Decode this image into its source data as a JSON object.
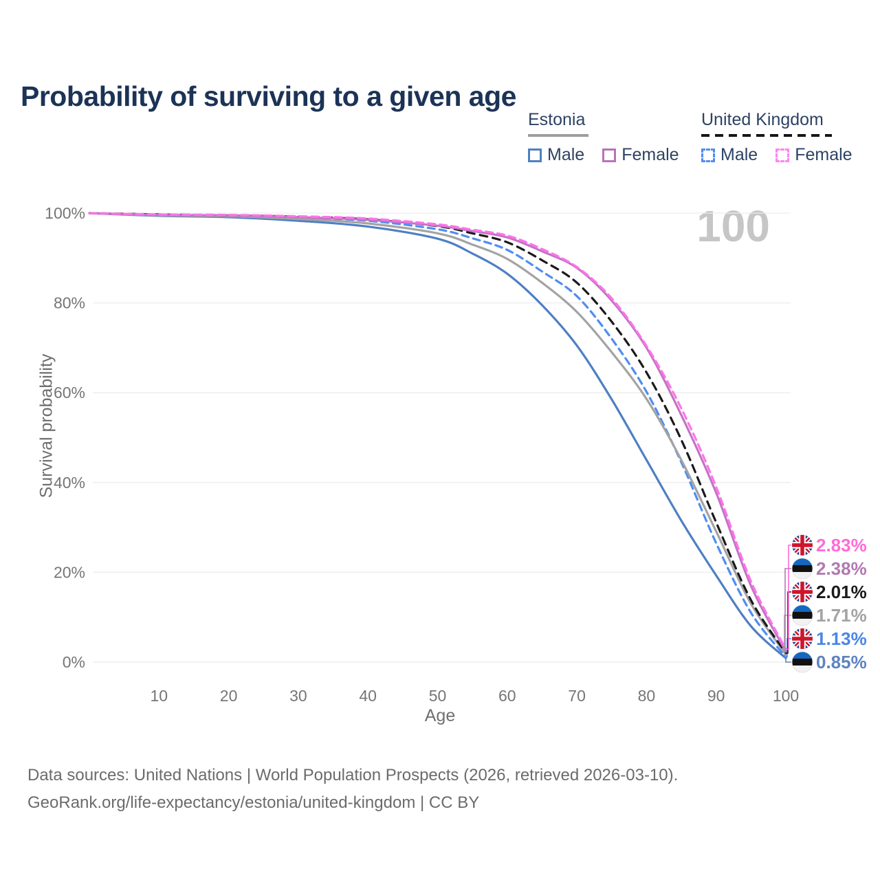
{
  "title": "Probability of surviving to a given age",
  "watermark": "100",
  "legend": {
    "groups": [
      {
        "label": "Estonia",
        "line_style": "solid",
        "underline_color": "#9e9e9e",
        "items": [
          {
            "label": "Male",
            "color": "#4e7fc3",
            "dashed": false
          },
          {
            "label": "Female",
            "color": "#b873b8",
            "dashed": false
          }
        ]
      },
      {
        "label": "United Kingdom",
        "line_style": "dashed",
        "underline_color": "#161616",
        "items": [
          {
            "label": "Male",
            "color": "#4f8df2",
            "dashed": true
          },
          {
            "label": "Female",
            "color": "#ff85ec",
            "dashed": true
          }
        ]
      }
    ]
  },
  "chart_data": {
    "type": "line",
    "title": "Probability of surviving to a given age",
    "xlabel": "Age",
    "ylabel": "Survival probability",
    "xlim": [
      0,
      100
    ],
    "ylim": [
      0,
      100
    ],
    "grid": "horizontal",
    "x_ticks": [
      10,
      20,
      30,
      40,
      50,
      60,
      70,
      80,
      90,
      100
    ],
    "y_ticks": [
      {
        "value": 0,
        "label": "0%"
      },
      {
        "value": 20,
        "label": "20%"
      },
      {
        "value": 40,
        "label": "40%"
      },
      {
        "value": 60,
        "label": "60%"
      },
      {
        "value": 80,
        "label": "80%"
      },
      {
        "value": 100,
        "label": "100%"
      }
    ],
    "x": [
      0,
      10,
      20,
      30,
      40,
      50,
      55,
      60,
      65,
      70,
      75,
      80,
      85,
      90,
      95,
      100
    ],
    "series": [
      {
        "name": "Estonia Male",
        "country": "Estonia",
        "sex": "Male",
        "color": "#4e7fc3",
        "dash": null,
        "flag": "ee",
        "label_slot": 5,
        "end_label": "0.85%",
        "end_label_color": "#5e83c0",
        "values": [
          100,
          99.4,
          99.1,
          98.3,
          97.0,
          94.3,
          91.0,
          86.5,
          79.5,
          70.5,
          58.5,
          45.0,
          31.5,
          19.3,
          8.0,
          0.85
        ]
      },
      {
        "name": "United Kingdom Male",
        "country": "United Kingdom",
        "sex": "Male",
        "color": "#4f8df2",
        "dash": "10 7",
        "flag": "uk",
        "label_slot": 4,
        "end_label": "1.13%",
        "end_label_color": "#4a86e8",
        "values": [
          100,
          99.6,
          99.4,
          99.0,
          98.3,
          96.4,
          94.4,
          91.8,
          87.0,
          81.5,
          72.0,
          60.2,
          44.5,
          26.5,
          11.0,
          1.13
        ]
      },
      {
        "name": "Estonia Total",
        "country": "Estonia",
        "sex": "Total",
        "color": "#a3a3a3",
        "dash": null,
        "flag": "ee",
        "label_slot": 3,
        "end_label": "1.71%",
        "end_label_color": "#a3a3a3",
        "values": [
          100,
          99.5,
          99.3,
          98.7,
          97.7,
          95.5,
          93.0,
          89.8,
          84.5,
          78.0,
          69.0,
          58.6,
          45.0,
          29.1,
          13.0,
          1.71
        ]
      },
      {
        "name": "United Kingdom Total",
        "country": "United Kingdom",
        "sex": "Total",
        "color": "#1a1a1a",
        "dash": "11 8",
        "flag": "uk",
        "label_slot": 2,
        "end_label": "2.01%",
        "end_label_color": "#1a1a1a",
        "values": [
          100,
          99.7,
          99.5,
          99.2,
          98.6,
          97.1,
          95.5,
          93.5,
          89.5,
          84.5,
          75.8,
          64.5,
          49.5,
          31.1,
          13.8,
          2.01
        ]
      },
      {
        "name": "Estonia Female",
        "country": "Estonia",
        "sex": "Female",
        "color": "#c473c6",
        "dash": null,
        "flag": "ee",
        "label_slot": 1,
        "end_label": "2.38%",
        "end_label_color": "#b279b2",
        "values": [
          100,
          99.6,
          99.5,
          99.1,
          98.5,
          97.2,
          96.0,
          94.6,
          91.5,
          87.8,
          80.5,
          70.0,
          55.0,
          37.7,
          17.0,
          2.38
        ]
      },
      {
        "name": "United Kingdom Female",
        "country": "United Kingdom",
        "sex": "Female",
        "color": "#ff73e9",
        "dash": "10 7",
        "flag": "uk",
        "label_slot": 0,
        "end_label": "2.83%",
        "end_label_color": "#ff6bd8",
        "values": [
          100,
          99.7,
          99.6,
          99.3,
          98.8,
          97.5,
          96.3,
          95.0,
          92.0,
          88.0,
          81.0,
          70.4,
          56.5,
          39.0,
          18.0,
          2.83
        ]
      }
    ]
  },
  "footer": {
    "line1": "Data sources: United Nations | World Population Prospects (2026, retrieved 2026-03-10).",
    "line2": "GeoRank.org/life-expectancy/estonia/united-kingdom | CC BY"
  }
}
